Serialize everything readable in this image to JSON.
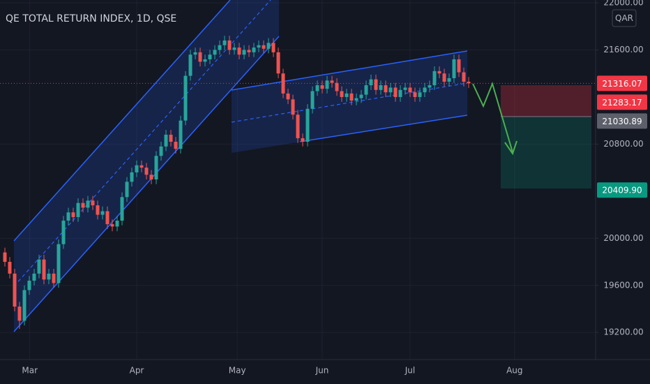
{
  "chart_data": {
    "type": "candlestick",
    "title": "QE TOTAL RETURN INDEX, 1D, QSE",
    "currency": "QAR",
    "up_color": "#26a69a",
    "down_color": "#ef5350",
    "xlim": [
      0,
      122
    ],
    "ylim": [
      18970,
      22024
    ],
    "xticks": [
      {
        "value": 6.1,
        "label": "Mar"
      },
      {
        "value": 28,
        "label": "Apr"
      },
      {
        "value": 48.6,
        "label": "May"
      },
      {
        "value": 66,
        "label": "Jun"
      },
      {
        "value": 84,
        "label": "Jul"
      },
      {
        "value": 105.4,
        "label": "Aug"
      }
    ],
    "yticks": [
      {
        "value": 19200,
        "label": "19200.00"
      },
      {
        "value": 19600,
        "label": "19600.00"
      },
      {
        "value": 20000,
        "label": "20000.00"
      },
      {
        "value": 20800,
        "label": "20800.00"
      },
      {
        "value": 21600,
        "label": "21600.00"
      },
      {
        "value": 22000,
        "label": "22000.00"
      }
    ],
    "grid": true,
    "price_labels": [
      21316.07,
      21283.17,
      21030.89,
      {
        "value": 20409.9,
        "label": "20409.90"
      }
    ],
    "price_label_colors": [
      "#f23645",
      "#f23645",
      "#5d606b",
      "#089981"
    ],
    "x": [
      1,
      2,
      3,
      4,
      5,
      6,
      7,
      8,
      9,
      10,
      11,
      12,
      13,
      14,
      15,
      16,
      17,
      18,
      19,
      20,
      21,
      22,
      23,
      24,
      25,
      26,
      27,
      28,
      29,
      30,
      31,
      32,
      33,
      34,
      35,
      36,
      37,
      38,
      39,
      40,
      41,
      42,
      43,
      44,
      45,
      46,
      47,
      48,
      49,
      50,
      51,
      52,
      53,
      54,
      55,
      56,
      57,
      58,
      59,
      60,
      61,
      62,
      63,
      64,
      65,
      66,
      67,
      68,
      69,
      70,
      71,
      72,
      73,
      74,
      75,
      76,
      77,
      78,
      79,
      80,
      81,
      82,
      83,
      84,
      85,
      86,
      87,
      88,
      89,
      90,
      91,
      92,
      93,
      94,
      95,
      96
    ],
    "open": [
      19880,
      19800,
      19700,
      19420,
      19300,
      19560,
      19640,
      19700,
      19820,
      19650,
      19700,
      19620,
      19950,
      20150,
      20220,
      20180,
      20300,
      20260,
      20320,
      20280,
      20200,
      20230,
      20120,
      20100,
      20150,
      20350,
      20480,
      20560,
      20620,
      20600,
      20540,
      20500,
      20700,
      20780,
      20880,
      20820,
      20760,
      21000,
      21380,
      21560,
      21580,
      21500,
      21520,
      21560,
      21600,
      21640,
      21680,
      21600,
      21620,
      21560,
      21600,
      21580,
      21620,
      21640,
      21610,
      21660,
      21580,
      21400,
      21230,
      21180,
      21050,
      20850,
      20820,
      21100,
      21250,
      21300,
      21270,
      21340,
      21320,
      21250,
      21200,
      21230,
      21170,
      21190,
      21220,
      21300,
      21350,
      21260,
      21300,
      21240,
      21280,
      21200,
      21260,
      21280,
      21240,
      21200,
      21240,
      21280,
      21300,
      21420,
      21400,
      21330,
      21360,
      21520,
      21410,
      21330
    ],
    "high": [
      19920,
      19840,
      19740,
      19460,
      19600,
      19680,
      19740,
      19860,
      19860,
      19740,
      19740,
      19990,
      20190,
      20260,
      20260,
      20340,
      20340,
      20360,
      20360,
      20320,
      20270,
      20270,
      20160,
      20190,
      20390,
      20520,
      20600,
      20660,
      20660,
      20640,
      20580,
      20740,
      20820,
      20920,
      20920,
      20860,
      21040,
      21420,
      21600,
      21620,
      21620,
      21560,
      21600,
      21640,
      21680,
      21720,
      21720,
      21660,
      21660,
      21640,
      21640,
      21660,
      21680,
      21680,
      21700,
      21700,
      21620,
      21440,
      21270,
      21220,
      21090,
      20890,
      21140,
      21290,
      21340,
      21340,
      21380,
      21380,
      21360,
      21290,
      21270,
      21270,
      21230,
      21260,
      21340,
      21390,
      21390,
      21340,
      21340,
      21320,
      21320,
      21300,
      21320,
      21320,
      21280,
      21280,
      21320,
      21340,
      21460,
      21460,
      21440,
      21400,
      21560,
      21560,
      21450,
      21370
    ],
    "low": [
      19760,
      19660,
      19380,
      19230,
      19260,
      19520,
      19600,
      19660,
      19610,
      19610,
      19580,
      19580,
      19910,
      20110,
      20140,
      20140,
      20220,
      20220,
      20240,
      20160,
      20160,
      20080,
      20060,
      20060,
      20110,
      20310,
      20440,
      20520,
      20560,
      20500,
      20460,
      20460,
      20660,
      20740,
      20780,
      20720,
      20720,
      20960,
      21340,
      21520,
      21460,
      21460,
      21480,
      21520,
      21560,
      21600,
      21560,
      21560,
      21520,
      21520,
      21540,
      21540,
      21580,
      21570,
      21570,
      21540,
      21360,
      21190,
      21140,
      21010,
      20810,
      20780,
      20780,
      21060,
      21210,
      21230,
      21230,
      21280,
      21210,
      21160,
      21160,
      21130,
      21130,
      21150,
      21180,
      21260,
      21220,
      21220,
      21200,
      21200,
      21160,
      21160,
      21220,
      21200,
      21160,
      21160,
      21200,
      21240,
      21260,
      21360,
      21290,
      21290,
      21320,
      21370,
      21290,
      21276
    ],
    "close": [
      19800,
      19700,
      19420,
      19300,
      19560,
      19640,
      19700,
      19820,
      19650,
      19700,
      19620,
      19950,
      20150,
      20220,
      20180,
      20300,
      20260,
      20320,
      20280,
      20200,
      20230,
      20120,
      20100,
      20150,
      20350,
      20480,
      20560,
      20620,
      20600,
      20540,
      20500,
      20700,
      20780,
      20880,
      20820,
      20760,
      21000,
      21380,
      21560,
      21580,
      21500,
      21520,
      21560,
      21600,
      21640,
      21680,
      21600,
      21620,
      21560,
      21600,
      21580,
      21620,
      21640,
      21610,
      21660,
      21580,
      21400,
      21230,
      21180,
      21050,
      20850,
      20820,
      21100,
      21250,
      21300,
      21270,
      21340,
      21320,
      21250,
      21200,
      21230,
      21170,
      21190,
      21220,
      21300,
      21350,
      21260,
      21300,
      21240,
      21280,
      21200,
      21260,
      21280,
      21240,
      21200,
      21240,
      21280,
      21300,
      21420,
      21400,
      21330,
      21360,
      21520,
      21410,
      21330,
      21316
    ]
  }
}
